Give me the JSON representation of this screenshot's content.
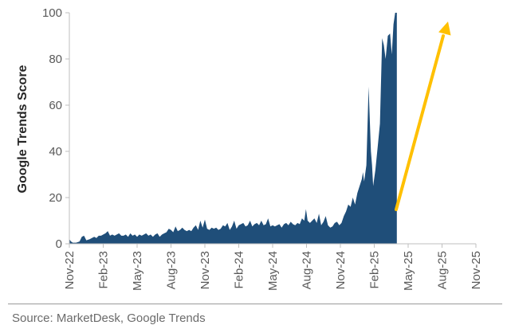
{
  "chart_data": {
    "type": "area",
    "ylabel": "Google Trends Score",
    "ylim": [
      0,
      100
    ],
    "yticks": [
      0,
      20,
      40,
      60,
      80,
      100
    ],
    "xticks": [
      "Nov-22",
      "Feb-23",
      "May-23",
      "Aug-23",
      "Nov-23",
      "Feb-24",
      "May-24",
      "Aug-24",
      "Nov-24",
      "Feb-25",
      "May-25",
      "Aug-25",
      "Nov-25"
    ],
    "grid": false,
    "area_color": "#1f4e79",
    "arrow_color": "#ffc000",
    "annotation": "upward trend arrow (no text)",
    "series": [
      {
        "values": [
          [
            0,
            2
          ],
          [
            0.15,
            1
          ],
          [
            0.3,
            0.5
          ],
          [
            0.6,
            0.5
          ],
          [
            0.9,
            1
          ],
          [
            1.1,
            3
          ],
          [
            1.3,
            3.5
          ],
          [
            1.5,
            1.5
          ],
          [
            1.8,
            2
          ],
          [
            2.0,
            2.5
          ],
          [
            2.2,
            3
          ],
          [
            2.4,
            2.5
          ],
          [
            2.6,
            3.5
          ],
          [
            2.8,
            3.5
          ],
          [
            3.0,
            4
          ],
          [
            3.2,
            4.5
          ],
          [
            3.4,
            5.5
          ],
          [
            3.6,
            3.5
          ],
          [
            3.8,
            4
          ],
          [
            4.0,
            3.5
          ],
          [
            4.2,
            4
          ],
          [
            4.4,
            4.5
          ],
          [
            4.6,
            3.5
          ],
          [
            4.8,
            3.5
          ],
          [
            5.0,
            4
          ],
          [
            5.2,
            3
          ],
          [
            5.4,
            4.5
          ],
          [
            5.6,
            3.5
          ],
          [
            5.8,
            4
          ],
          [
            6.0,
            3
          ],
          [
            6.2,
            4
          ],
          [
            6.4,
            3.5
          ],
          [
            6.6,
            4
          ],
          [
            6.8,
            4.5
          ],
          [
            7.0,
            3.5
          ],
          [
            7.2,
            4
          ],
          [
            7.4,
            3
          ],
          [
            7.6,
            4
          ],
          [
            7.8,
            4.5
          ],
          [
            8.0,
            3
          ],
          [
            8.2,
            4
          ],
          [
            8.4,
            4.5
          ],
          [
            8.6,
            5
          ],
          [
            8.8,
            6.5
          ],
          [
            9.0,
            6
          ],
          [
            9.2,
            5
          ],
          [
            9.4,
            7.5
          ],
          [
            9.6,
            5.5
          ],
          [
            9.8,
            6
          ],
          [
            10.0,
            7
          ],
          [
            10.2,
            6
          ],
          [
            10.4,
            5.5
          ],
          [
            10.6,
            6
          ],
          [
            10.8,
            5.5
          ],
          [
            11.0,
            7
          ],
          [
            11.2,
            8
          ],
          [
            11.4,
            6
          ],
          [
            11.6,
            10
          ],
          [
            11.8,
            7
          ],
          [
            12.0,
            10.5
          ],
          [
            12.2,
            6.5
          ],
          [
            12.4,
            6
          ],
          [
            12.6,
            7
          ],
          [
            12.8,
            6.5
          ],
          [
            13.0,
            7
          ],
          [
            13.2,
            6
          ],
          [
            13.4,
            6.5
          ],
          [
            13.6,
            8
          ],
          [
            13.8,
            7.5
          ],
          [
            14.0,
            9
          ],
          [
            14.2,
            6
          ],
          [
            14.4,
            7.5
          ],
          [
            14.6,
            10
          ],
          [
            14.8,
            6.5
          ],
          [
            15.0,
            8
          ],
          [
            15.2,
            8.5
          ],
          [
            15.4,
            9
          ],
          [
            15.6,
            7.5
          ],
          [
            15.8,
            8
          ],
          [
            16.0,
            10
          ],
          [
            16.2,
            7.5
          ],
          [
            16.4,
            8.5
          ],
          [
            16.6,
            9
          ],
          [
            16.8,
            8
          ],
          [
            17.0,
            10
          ],
          [
            17.2,
            8
          ],
          [
            17.4,
            8.5
          ],
          [
            17.6,
            11
          ],
          [
            17.8,
            7.5
          ],
          [
            18.0,
            8
          ],
          [
            18.2,
            7.5
          ],
          [
            18.4,
            8
          ],
          [
            18.6,
            8.5
          ],
          [
            18.8,
            7
          ],
          [
            19.0,
            8.5
          ],
          [
            19.2,
            9
          ],
          [
            19.4,
            8
          ],
          [
            19.6,
            9.5
          ],
          [
            19.8,
            8.5
          ],
          [
            20.0,
            8
          ],
          [
            20.2,
            9
          ],
          [
            20.4,
            8.5
          ],
          [
            20.6,
            11
          ],
          [
            20.8,
            10
          ],
          [
            20.95,
            15
          ],
          [
            21.1,
            10
          ],
          [
            21.3,
            9
          ],
          [
            21.5,
            10
          ],
          [
            21.7,
            11
          ],
          [
            21.9,
            9
          ],
          [
            22.1,
            13
          ],
          [
            22.3,
            8
          ],
          [
            22.5,
            9.5
          ],
          [
            22.7,
            12
          ],
          [
            22.9,
            8
          ],
          [
            23.1,
            7
          ],
          [
            23.3,
            7.5
          ],
          [
            23.5,
            9
          ],
          [
            23.7,
            9.5
          ],
          [
            23.9,
            8
          ],
          [
            24.1,
            9
          ],
          [
            24.3,
            12
          ],
          [
            24.5,
            14
          ],
          [
            24.7,
            17
          ],
          [
            24.9,
            16
          ],
          [
            25.1,
            20
          ],
          [
            25.3,
            17
          ],
          [
            25.5,
            22
          ],
          [
            25.7,
            25
          ],
          [
            25.9,
            28
          ],
          [
            26.0,
            31
          ],
          [
            26.1,
            27
          ],
          [
            26.3,
            34
          ],
          [
            26.5,
            68
          ],
          [
            26.7,
            40
          ],
          [
            26.8,
            34
          ],
          [
            26.9,
            25
          ],
          [
            27.1,
            32
          ],
          [
            27.3,
            42
          ],
          [
            27.5,
            52
          ],
          [
            27.7,
            89
          ],
          [
            27.85,
            86
          ],
          [
            28.0,
            80
          ],
          [
            28.2,
            90
          ],
          [
            28.4,
            91
          ],
          [
            28.55,
            82
          ],
          [
            28.7,
            95
          ],
          [
            28.85,
            100
          ],
          [
            29.0,
            100
          ]
        ]
      }
    ]
  },
  "footer": {
    "source": "Source: MarketDesk, Google Trends"
  }
}
